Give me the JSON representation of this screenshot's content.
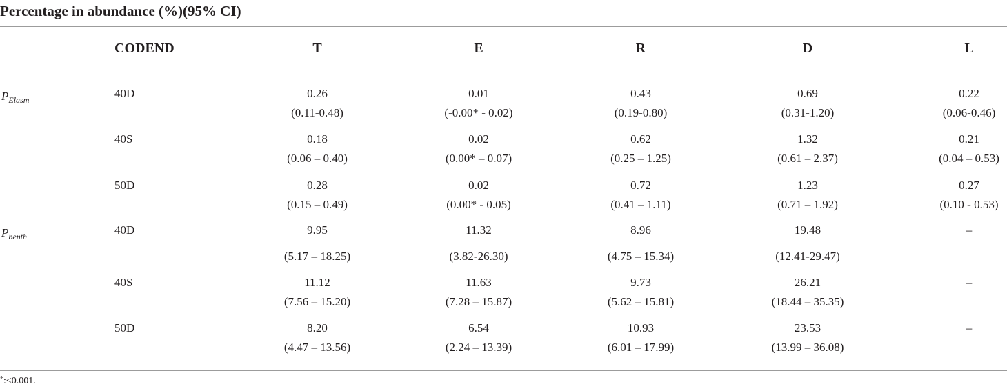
{
  "title": "Percentage in abundance (%)(95% CI)",
  "headers": {
    "codend": "CODEND",
    "cols": [
      "T",
      "E",
      "R",
      "D",
      "L"
    ]
  },
  "groups": [
    {
      "p": "P",
      "sub": "Elasm"
    },
    {
      "p": "P",
      "sub": "benth"
    }
  ],
  "rows": [
    {
      "codend": "40D",
      "vals": [
        "0.26",
        "0.01",
        "0.43",
        "0.69",
        "0.22"
      ],
      "cis": [
        "(0.11-0.48)",
        "(-0.00* - 0.02)",
        "(0.19-0.80)",
        "(0.31-1.20)",
        "(0.06-0.46)"
      ]
    },
    {
      "codend": "40S",
      "vals": [
        "0.18",
        "0.02",
        "0.62",
        "1.32",
        "0.21"
      ],
      "cis": [
        "(0.06 – 0.40)",
        "(0.00* – 0.07)",
        "(0.25 – 1.25)",
        "(0.61 – 2.37)",
        "(0.04 – 0.53)"
      ]
    },
    {
      "codend": "50D",
      "vals": [
        "0.28",
        "0.02",
        "0.72",
        "1.23",
        "0.27"
      ],
      "cis": [
        "(0.15 – 0.49)",
        "(0.00* - 0.05)",
        "(0.41 – 1.11)",
        "(0.71 – 1.92)",
        "(0.10 - 0.53)"
      ]
    },
    {
      "codend": "40D",
      "vals": [
        "9.95",
        "11.32",
        "8.96",
        "19.48",
        "–"
      ],
      "cis": [
        "(5.17 – 18.25)",
        "(3.82-26.30)",
        "(4.75 – 15.34)",
        "(12.41-29.47)",
        ""
      ]
    },
    {
      "codend": "40S",
      "vals": [
        "11.12",
        "11.63",
        "9.73",
        "26.21",
        "–"
      ],
      "cis": [
        "(7.56 – 15.20)",
        "(7.28 – 15.87)",
        "(5.62 – 15.81)",
        "(18.44 – 35.35)",
        ""
      ]
    },
    {
      "codend": "50D",
      "vals": [
        "8.20",
        "6.54",
        "10.93",
        "23.53",
        "–"
      ],
      "cis": [
        "(4.47 – 13.56)",
        "(2.24 – 13.39)",
        "(6.01 – 17.99)",
        "(13.99 – 36.08)",
        ""
      ]
    }
  ],
  "footnote": {
    "mark": "*",
    "text": ":<0.001."
  }
}
